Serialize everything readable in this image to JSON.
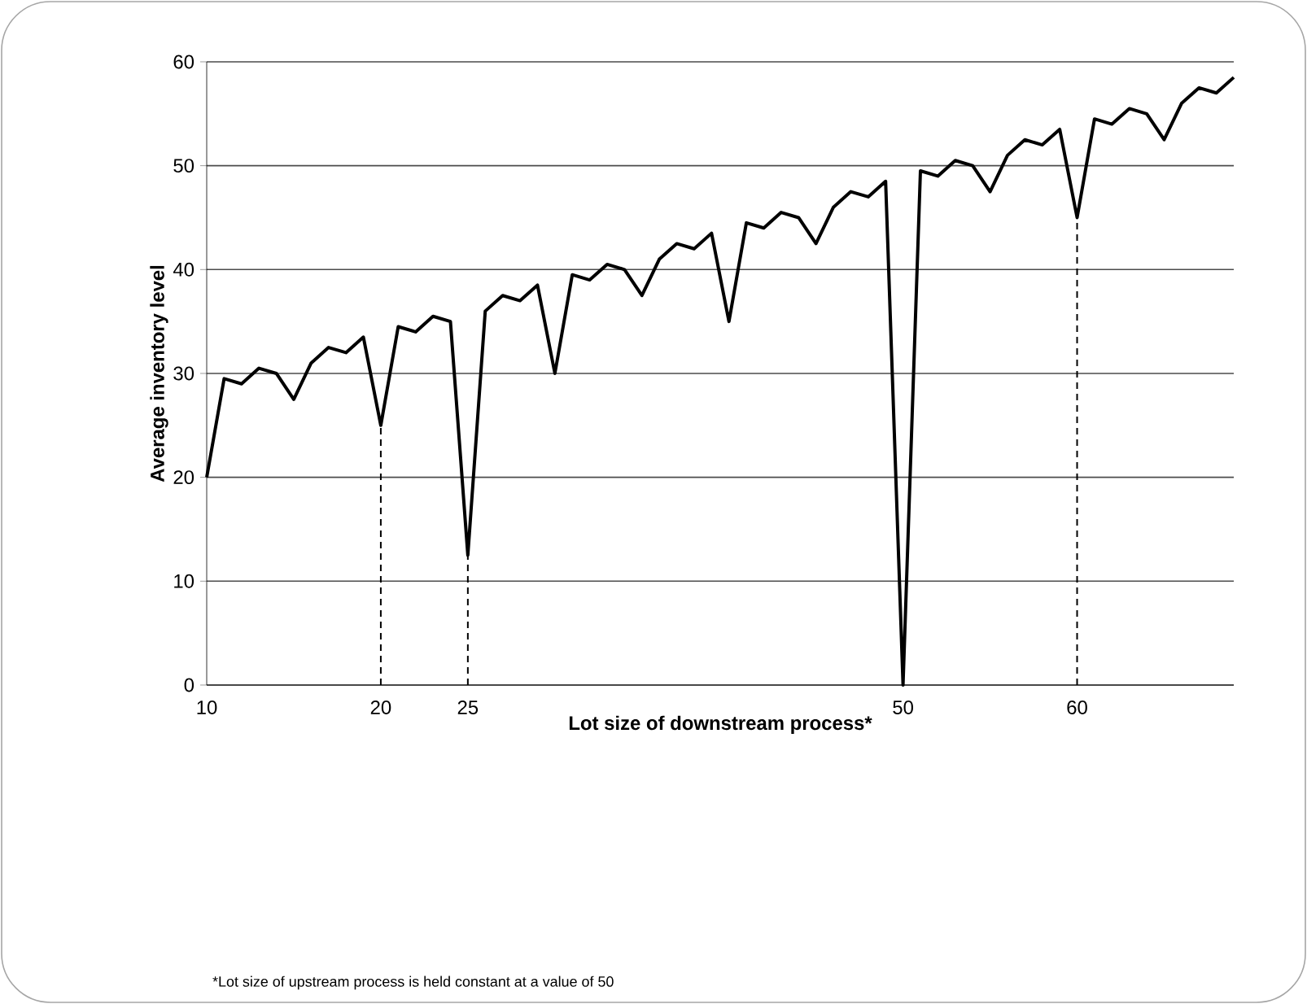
{
  "chart_data": {
    "type": "line",
    "xlabel": "Lot size of downstream process*",
    "ylabel": "Average inventory level",
    "annotations": [
      "*Lot size of upstream process is held constant at a value of 50"
    ],
    "x": [
      10,
      11,
      12,
      13,
      14,
      15,
      16,
      17,
      18,
      19,
      20,
      21,
      22,
      23,
      24,
      25,
      26,
      27,
      28,
      29,
      30,
      31,
      32,
      33,
      34,
      35,
      36,
      37,
      38,
      39,
      40,
      41,
      42,
      43,
      44,
      45,
      46,
      47,
      48,
      49,
      50,
      51,
      52,
      53,
      54,
      55,
      56,
      57,
      58,
      59,
      60,
      61,
      62,
      63,
      64,
      65,
      66,
      67,
      68,
      69
    ],
    "series": [
      {
        "color": "#000000",
        "values": [
          20,
          29.5,
          29,
          30.5,
          30,
          27.5,
          31,
          32.5,
          32,
          33.5,
          25,
          34.5,
          34,
          35.5,
          35,
          12.5,
          36,
          37.5,
          37,
          38.5,
          30,
          39.5,
          39,
          40.5,
          40,
          37.5,
          41,
          42.5,
          42,
          43.5,
          35,
          44.5,
          44,
          45.5,
          45,
          42.5,
          46,
          47.5,
          47,
          48.5,
          0,
          49.5,
          49,
          50.5,
          50,
          47.5,
          51,
          52.5,
          52,
          53.5,
          45,
          54.5,
          54,
          55.5,
          55,
          52.5,
          56,
          57.5,
          57,
          58.5
        ]
      }
    ],
    "xlim": [
      10,
      69
    ],
    "ylim": [
      0,
      60
    ],
    "xticks": [
      10,
      20,
      25,
      50,
      60
    ],
    "yticks": [
      0,
      10,
      20,
      30,
      40,
      50,
      60
    ],
    "ref_lines": [
      {
        "axis": "x",
        "value": 20,
        "line_style": "dashed"
      },
      {
        "axis": "x",
        "value": 25,
        "line_style": "dashed"
      },
      {
        "axis": "x",
        "value": 60,
        "line_style": "dashed"
      }
    ],
    "grid": "y",
    "marker": "none",
    "line_style": "solid"
  }
}
